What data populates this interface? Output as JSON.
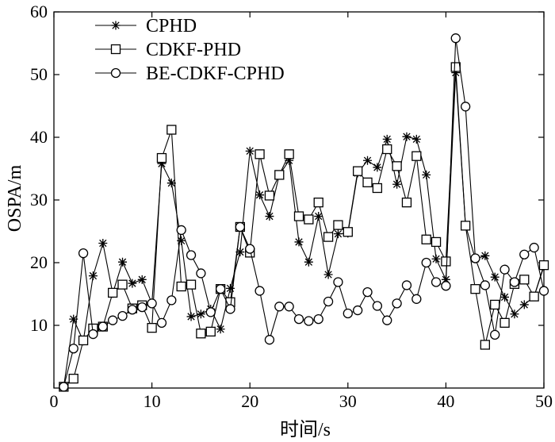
{
  "chart_data": {
    "type": "line",
    "title": "",
    "xlabel": "时间/s",
    "ylabel": "OSPA/m",
    "xlim": [
      0,
      50
    ],
    "ylim": [
      0,
      60
    ],
    "xticks": [
      0,
      10,
      20,
      30,
      40,
      50
    ],
    "yticks": [
      10,
      20,
      30,
      40,
      50,
      60
    ],
    "grid": false,
    "legend_position": "top-left",
    "x": [
      1,
      2,
      3,
      4,
      5,
      6,
      7,
      8,
      9,
      10,
      11,
      12,
      13,
      14,
      15,
      16,
      17,
      18,
      19,
      20,
      21,
      22,
      23,
      24,
      25,
      26,
      27,
      28,
      29,
      30,
      31,
      32,
      33,
      34,
      35,
      36,
      37,
      38,
      39,
      40,
      41,
      42,
      43,
      44,
      45,
      46,
      47,
      48,
      49,
      50
    ],
    "series": [
      {
        "name": "CPHD",
        "marker": "star",
        "values": [
          0.2,
          11.0,
          7.5,
          17.9,
          23.1,
          15.1,
          20.1,
          16.7,
          17.3,
          13.5,
          35.8,
          32.7,
          23.5,
          11.4,
          11.8,
          12.6,
          9.4,
          15.9,
          21.7,
          37.8,
          30.8,
          27.4,
          34.0,
          36.3,
          23.3,
          20.1,
          27.4,
          18.1,
          24.6,
          24.7,
          34.3,
          36.3,
          35.2,
          39.7,
          32.5,
          40.1,
          39.7,
          34.0,
          20.6,
          17.3,
          50.3,
          26.0,
          20.6,
          21.1,
          17.7,
          14.5,
          11.8,
          13.3,
          14.6,
          19.4
        ]
      },
      {
        "name": "CDKF-PHD",
        "marker": "square",
        "values": [
          0.2,
          1.5,
          7.6,
          9.5,
          9.8,
          15.2,
          16.5,
          12.7,
          13.2,
          9.6,
          36.7,
          41.2,
          16.2,
          16.5,
          8.7,
          9.0,
          15.8,
          13.7,
          25.7,
          21.6,
          37.3,
          30.7,
          34.0,
          37.3,
          27.4,
          26.9,
          29.6,
          24.1,
          26.0,
          24.9,
          34.6,
          32.8,
          31.9,
          38.1,
          35.4,
          29.6,
          37.0,
          23.7,
          23.3,
          20.2,
          51.2,
          25.9,
          15.8,
          6.9,
          13.3,
          10.4,
          16.6,
          17.3,
          14.6,
          19.6
        ]
      },
      {
        "name": "BE-CDKF-CPHD",
        "marker": "circle",
        "values": [
          0.2,
          6.3,
          21.5,
          8.6,
          9.8,
          10.8,
          11.5,
          12.5,
          12.9,
          13.5,
          10.4,
          14.0,
          25.2,
          21.2,
          18.3,
          12.1,
          15.8,
          12.6,
          25.7,
          22.2,
          15.5,
          7.7,
          13.0,
          13.0,
          11.0,
          10.7,
          11.0,
          13.8,
          16.9,
          11.9,
          12.4,
          15.3,
          13.1,
          10.8,
          13.5,
          16.4,
          14.2,
          20.0,
          16.9,
          16.3,
          55.8,
          44.9,
          20.7,
          16.4,
          8.5,
          18.9,
          16.9,
          21.3,
          22.4,
          15.5
        ]
      }
    ]
  }
}
